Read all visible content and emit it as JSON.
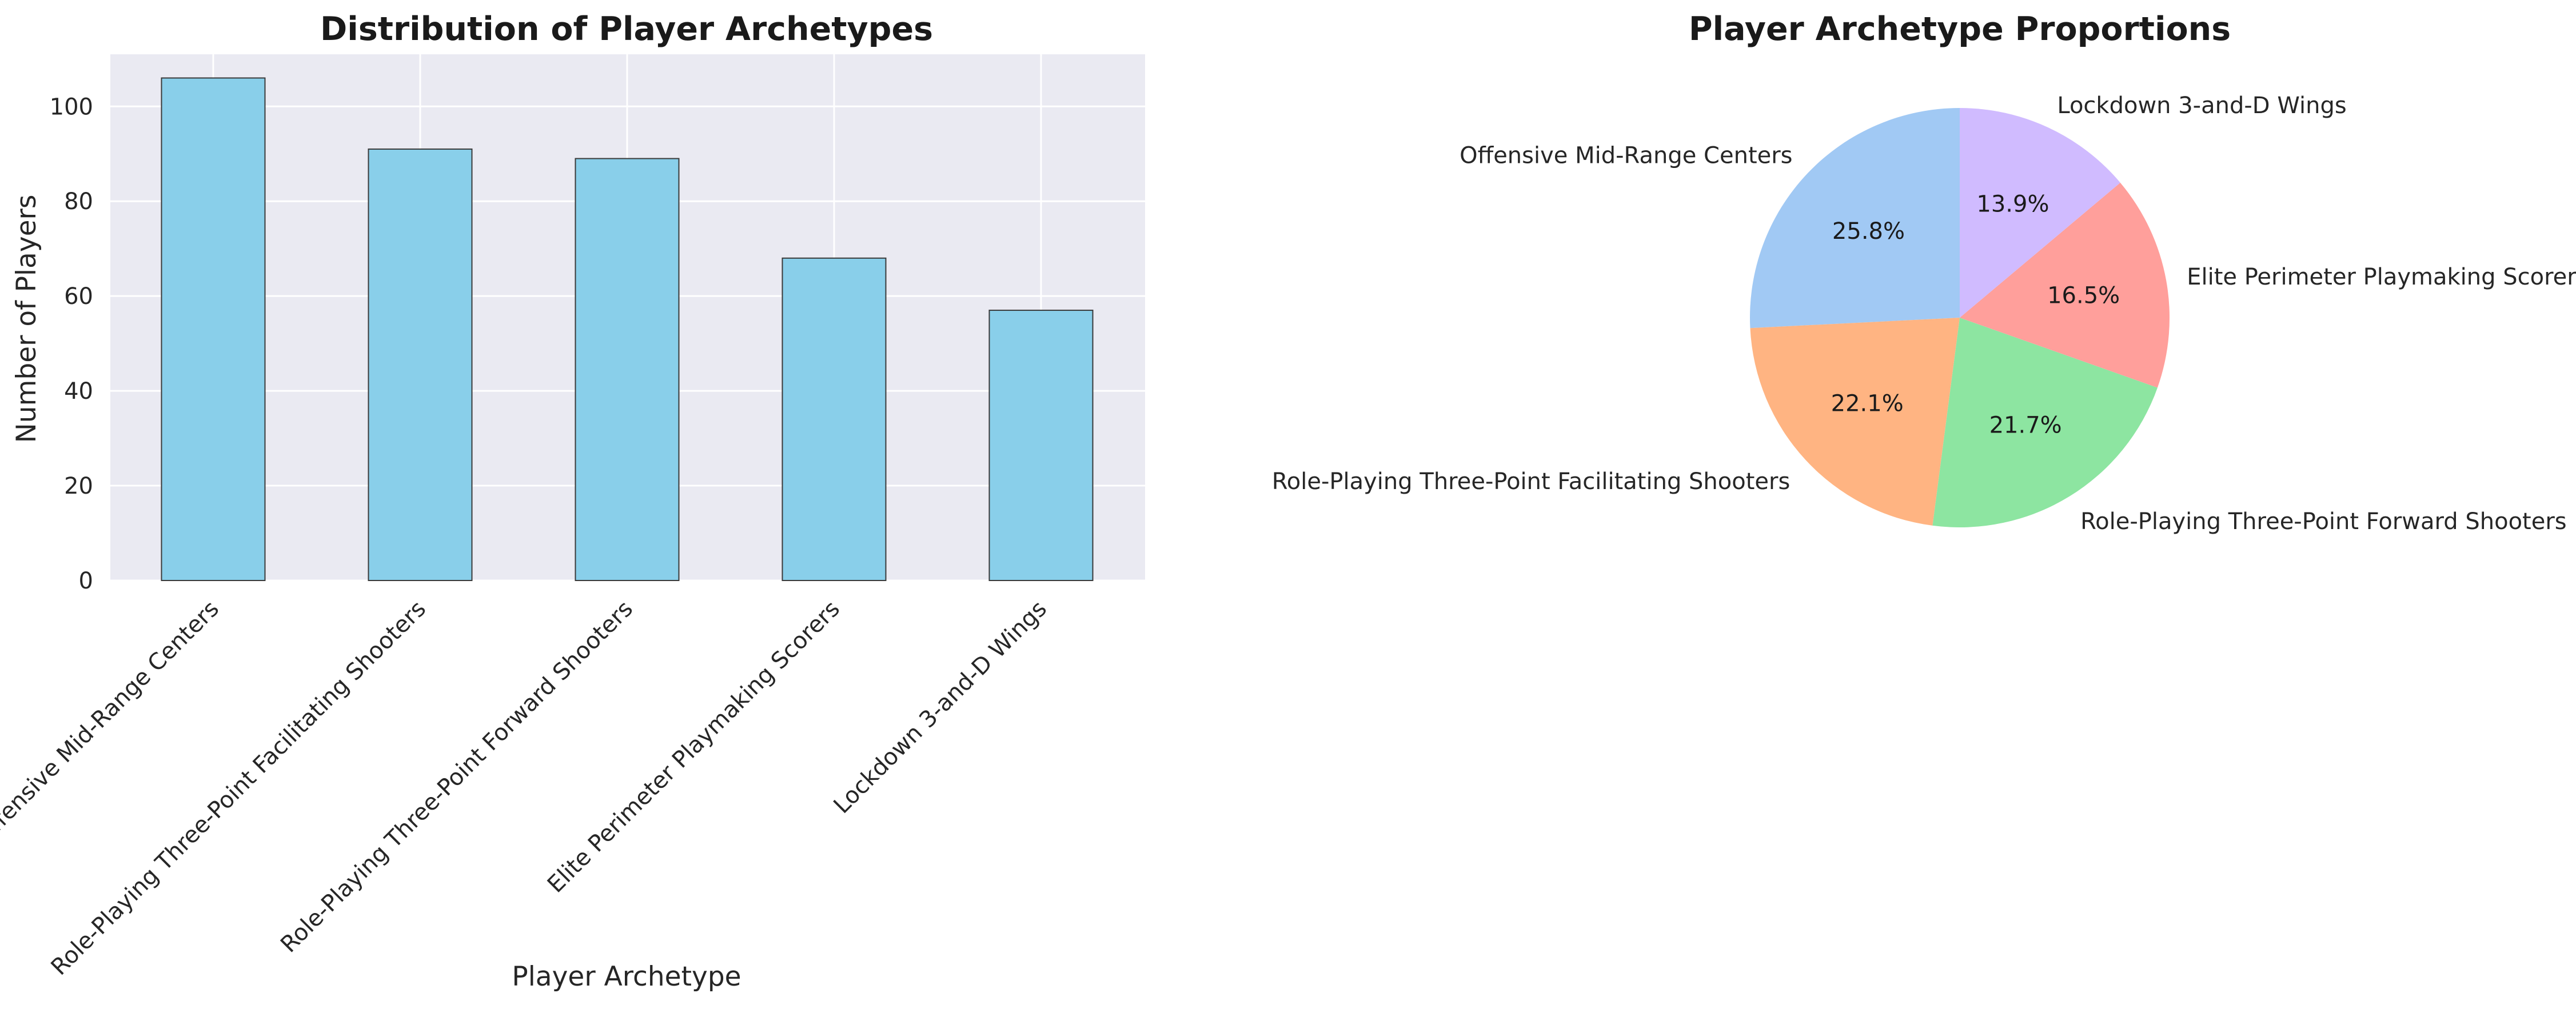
{
  "chart_data": [
    {
      "type": "bar",
      "title": "Distribution of Player Archetypes",
      "xlabel": "Player Archetype",
      "ylabel": "Number of Players",
      "categories": [
        "Offensive Mid-Range Centers",
        "Role-Playing Three-Point Facilitating Shooters",
        "Role-Playing Three-Point Forward Shooters",
        "Elite Perimeter Playmaking Scorers",
        "Lockdown 3-and-D Wings"
      ],
      "values": [
        106,
        91,
        89,
        68,
        57
      ],
      "ylim": [
        0,
        111
      ],
      "yticks": [
        0,
        20,
        40,
        60,
        80,
        100
      ],
      "grid": true,
      "colors": {
        "bar": "#89CFEA",
        "bar_edge": "#3a3a3a",
        "background": "#EAEAF2",
        "grid": "#ffffff"
      }
    },
    {
      "type": "pie",
      "title": "Player Archetype Proportions",
      "labels": [
        "Offensive Mid-Range Centers",
        "Role-Playing Three-Point Facilitating Shooters",
        "Role-Playing Three-Point Forward Shooters",
        "Elite Perimeter Playmaking Scorers",
        "Lockdown 3-and-D Wings"
      ],
      "values": [
        106,
        91,
        89,
        68,
        57
      ],
      "percent_labels": [
        "25.8%",
        "22.1%",
        "21.7%",
        "16.5%",
        "13.9%"
      ],
      "start_angle": 90,
      "direction": "counterclockwise",
      "colors": [
        "#A1C9F4",
        "#FFB482",
        "#8DE5A1",
        "#FF9F9B",
        "#D0BBFF"
      ]
    }
  ]
}
